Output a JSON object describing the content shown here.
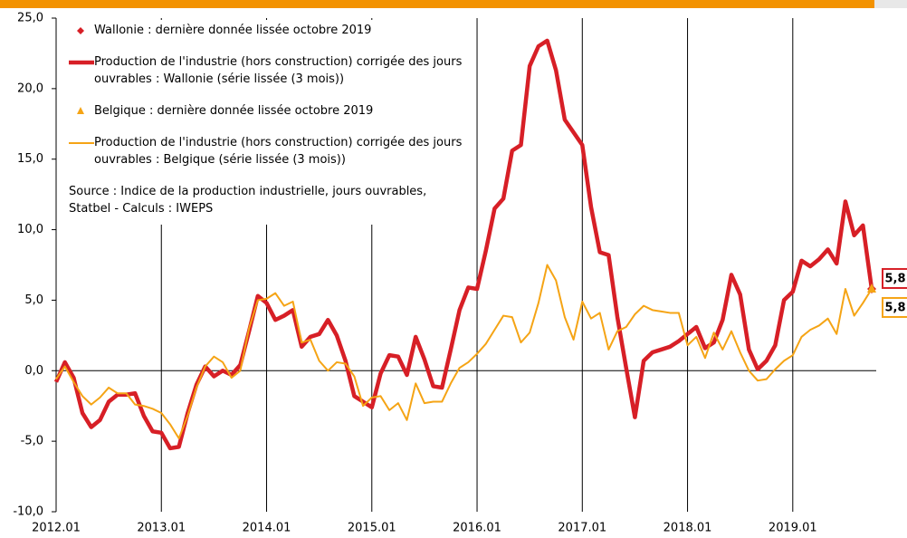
{
  "chart_data": {
    "type": "line",
    "categories": [
      "2012.01",
      null,
      null,
      null,
      null,
      null,
      null,
      null,
      null,
      null,
      null,
      null,
      "2013.01",
      null,
      null,
      null,
      null,
      null,
      null,
      null,
      null,
      null,
      null,
      null,
      "2014.01",
      null,
      null,
      null,
      null,
      null,
      null,
      null,
      null,
      null,
      null,
      null,
      "2015.01",
      null,
      null,
      null,
      null,
      null,
      null,
      null,
      null,
      null,
      null,
      null,
      "2016.01",
      null,
      null,
      null,
      null,
      null,
      null,
      null,
      null,
      null,
      null,
      null,
      "2017.01",
      null,
      null,
      null,
      null,
      null,
      null,
      null,
      null,
      null,
      null,
      null,
      "2018.01",
      null,
      null,
      null,
      null,
      null,
      null,
      null,
      null,
      null,
      null,
      null,
      "2019.01",
      null,
      null,
      null,
      null,
      null,
      null,
      null,
      null,
      null
    ],
    "series": [
      {
        "name": "Wallonie : dernière donnée lissée octobre 2019",
        "color": "#d71f26",
        "marker": "diamond",
        "values": [
          null,
          null,
          null,
          null,
          null,
          null,
          null,
          null,
          null,
          null,
          null,
          null,
          null,
          null,
          null,
          null,
          null,
          null,
          null,
          null,
          null,
          null,
          null,
          null,
          null,
          null,
          null,
          null,
          null,
          null,
          null,
          null,
          null,
          null,
          null,
          null,
          null,
          null,
          null,
          null,
          null,
          null,
          null,
          null,
          null,
          null,
          null,
          null,
          null,
          null,
          null,
          null,
          null,
          null,
          null,
          null,
          null,
          null,
          null,
          null,
          null,
          null,
          null,
          null,
          null,
          null,
          null,
          null,
          null,
          null,
          null,
          null,
          null,
          null,
          null,
          null,
          null,
          null,
          null,
          null,
          null,
          null,
          null,
          null,
          null,
          null,
          null,
          null,
          null,
          null,
          null,
          null,
          null,
          5.8
        ],
        "value_labels": [
          null,
          null,
          null,
          null,
          null,
          null,
          null,
          null,
          null,
          null,
          null,
          null,
          null,
          null,
          null,
          null,
          null,
          null,
          null,
          null,
          null,
          null,
          null,
          null,
          null,
          null,
          null,
          null,
          null,
          null,
          null,
          null,
          null,
          null,
          null,
          null,
          null,
          null,
          null,
          null,
          null,
          null,
          null,
          null,
          null,
          null,
          null,
          null,
          null,
          null,
          null,
          null,
          null,
          null,
          null,
          null,
          null,
          null,
          null,
          null,
          null,
          null,
          null,
          null,
          null,
          null,
          null,
          null,
          null,
          null,
          null,
          null,
          null,
          null,
          null,
          null,
          null,
          null,
          null,
          null,
          null,
          null,
          null,
          null,
          null,
          null,
          null,
          null,
          null,
          null,
          null,
          null,
          null,
          "5,8"
        ]
      },
      {
        "name": "Production de l'industrie (hors construction) corrigée des jours ouvrables : Wallonie (série lissée (3 mois))",
        "color": "#d71f26",
        "linewidth": 4.5,
        "values": [
          -0.8,
          0.6,
          -0.5,
          -3.0,
          -4.0,
          -3.5,
          -2.2,
          -1.7,
          -1.7,
          -1.6,
          -3.2,
          -4.3,
          -4.4,
          -5.5,
          -5.4,
          -3.0,
          -1.0,
          0.3,
          -0.4,
          0.0,
          -0.3,
          0.4,
          2.8,
          5.3,
          4.8,
          3.6,
          3.9,
          4.3,
          1.7,
          2.4,
          2.6,
          3.6,
          2.5,
          0.7,
          -1.8,
          -2.2,
          -2.6,
          -0.2,
          1.1,
          1.0,
          -0.3,
          2.4,
          0.8,
          -1.1,
          -1.2,
          1.5,
          4.3,
          5.9,
          5.8,
          8.5,
          11.5,
          12.2,
          15.6,
          16.0,
          21.6,
          23.0,
          23.4,
          21.3,
          17.8,
          16.9,
          16.0,
          11.6,
          8.4,
          8.2,
          3.8,
          0.2,
          -3.3,
          0.7,
          1.3,
          1.5,
          1.7,
          2.1,
          2.6,
          3.1,
          1.6,
          2.0,
          3.6,
          6.8,
          5.4,
          1.5,
          0.1,
          0.7,
          1.8,
          5.0,
          5.6,
          7.8,
          7.4,
          7.9,
          8.6,
          7.6,
          12.0,
          9.6,
          10.3,
          5.8
        ]
      },
      {
        "name": "Belgique : dernière donnée lissée octobre 2019",
        "color": "#f5a415",
        "marker": "triangle",
        "values": [
          null,
          null,
          null,
          null,
          null,
          null,
          null,
          null,
          null,
          null,
          null,
          null,
          null,
          null,
          null,
          null,
          null,
          null,
          null,
          null,
          null,
          null,
          null,
          null,
          null,
          null,
          null,
          null,
          null,
          null,
          null,
          null,
          null,
          null,
          null,
          null,
          null,
          null,
          null,
          null,
          null,
          null,
          null,
          null,
          null,
          null,
          null,
          null,
          null,
          null,
          null,
          null,
          null,
          null,
          null,
          null,
          null,
          null,
          null,
          null,
          null,
          null,
          null,
          null,
          null,
          null,
          null,
          null,
          null,
          null,
          null,
          null,
          null,
          null,
          null,
          null,
          null,
          null,
          null,
          null,
          null,
          null,
          null,
          null,
          null,
          null,
          null,
          null,
          null,
          null,
          null,
          null,
          null,
          5.8
        ],
        "value_labels": [
          null,
          null,
          null,
          null,
          null,
          null,
          null,
          null,
          null,
          null,
          null,
          null,
          null,
          null,
          null,
          null,
          null,
          null,
          null,
          null,
          null,
          null,
          null,
          null,
          null,
          null,
          null,
          null,
          null,
          null,
          null,
          null,
          null,
          null,
          null,
          null,
          null,
          null,
          null,
          null,
          null,
          null,
          null,
          null,
          null,
          null,
          null,
          null,
          null,
          null,
          null,
          null,
          null,
          null,
          null,
          null,
          null,
          null,
          null,
          null,
          null,
          null,
          null,
          null,
          null,
          null,
          null,
          null,
          null,
          null,
          null,
          null,
          null,
          null,
          null,
          null,
          null,
          null,
          null,
          null,
          null,
          null,
          null,
          null,
          null,
          null,
          null,
          null,
          null,
          null,
          null,
          null,
          null,
          "5,8"
        ]
      },
      {
        "name": "Production de l'industrie (hors construction) corrigée des jours ouvrables : Belgique (série lissée (3 mois))",
        "color": "#f5a415",
        "linewidth": 2,
        "values": [
          -0.6,
          0.3,
          -0.8,
          -1.8,
          -2.4,
          -1.9,
          -1.2,
          -1.6,
          -1.6,
          -2.4,
          -2.5,
          -2.7,
          -3.0,
          -3.8,
          -4.8,
          -3.2,
          -1.2,
          0.3,
          1.0,
          0.6,
          -0.5,
          0.0,
          3.0,
          5.0,
          5.1,
          5.5,
          4.6,
          4.9,
          2.0,
          2.2,
          0.7,
          0.0,
          0.6,
          0.5,
          -0.4,
          -2.5,
          -1.9,
          -1.8,
          -2.8,
          -2.3,
          -3.5,
          -0.9,
          -2.3,
          -2.2,
          -2.2,
          -0.9,
          0.2,
          0.6,
          1.2,
          1.9,
          2.9,
          3.9,
          3.8,
          2.0,
          2.7,
          4.8,
          7.5,
          6.4,
          3.8,
          2.2,
          4.9,
          3.7,
          4.1,
          1.5,
          2.8,
          3.1,
          4.0,
          4.6,
          4.3,
          4.2,
          4.1,
          4.1,
          1.8,
          2.4,
          0.9,
          2.7,
          1.5,
          2.8,
          1.3,
          0.0,
          -0.7,
          -0.6,
          0.1,
          0.7,
          1.1,
          2.4,
          2.9,
          3.2,
          3.7,
          2.6,
          5.8,
          3.9,
          4.8,
          5.8
        ]
      }
    ],
    "annotation": "Source : Indice de la production industrielle, jours ouvrables, Statbel - Calculs : IWEPS",
    "ylim": [
      -10,
      25
    ],
    "yticks": [
      {
        "value": -10,
        "label": "-10,0"
      },
      {
        "value": -5,
        "label": "-5,0"
      },
      {
        "value": 0,
        "label": "0,0"
      },
      {
        "value": 5,
        "label": "5,0"
      },
      {
        "value": 10,
        "label": "10,0"
      },
      {
        "value": 15,
        "label": "15,0"
      },
      {
        "value": 20,
        "label": "20,0"
      },
      {
        "value": 25,
        "label": "25,0"
      }
    ],
    "grid": true
  }
}
